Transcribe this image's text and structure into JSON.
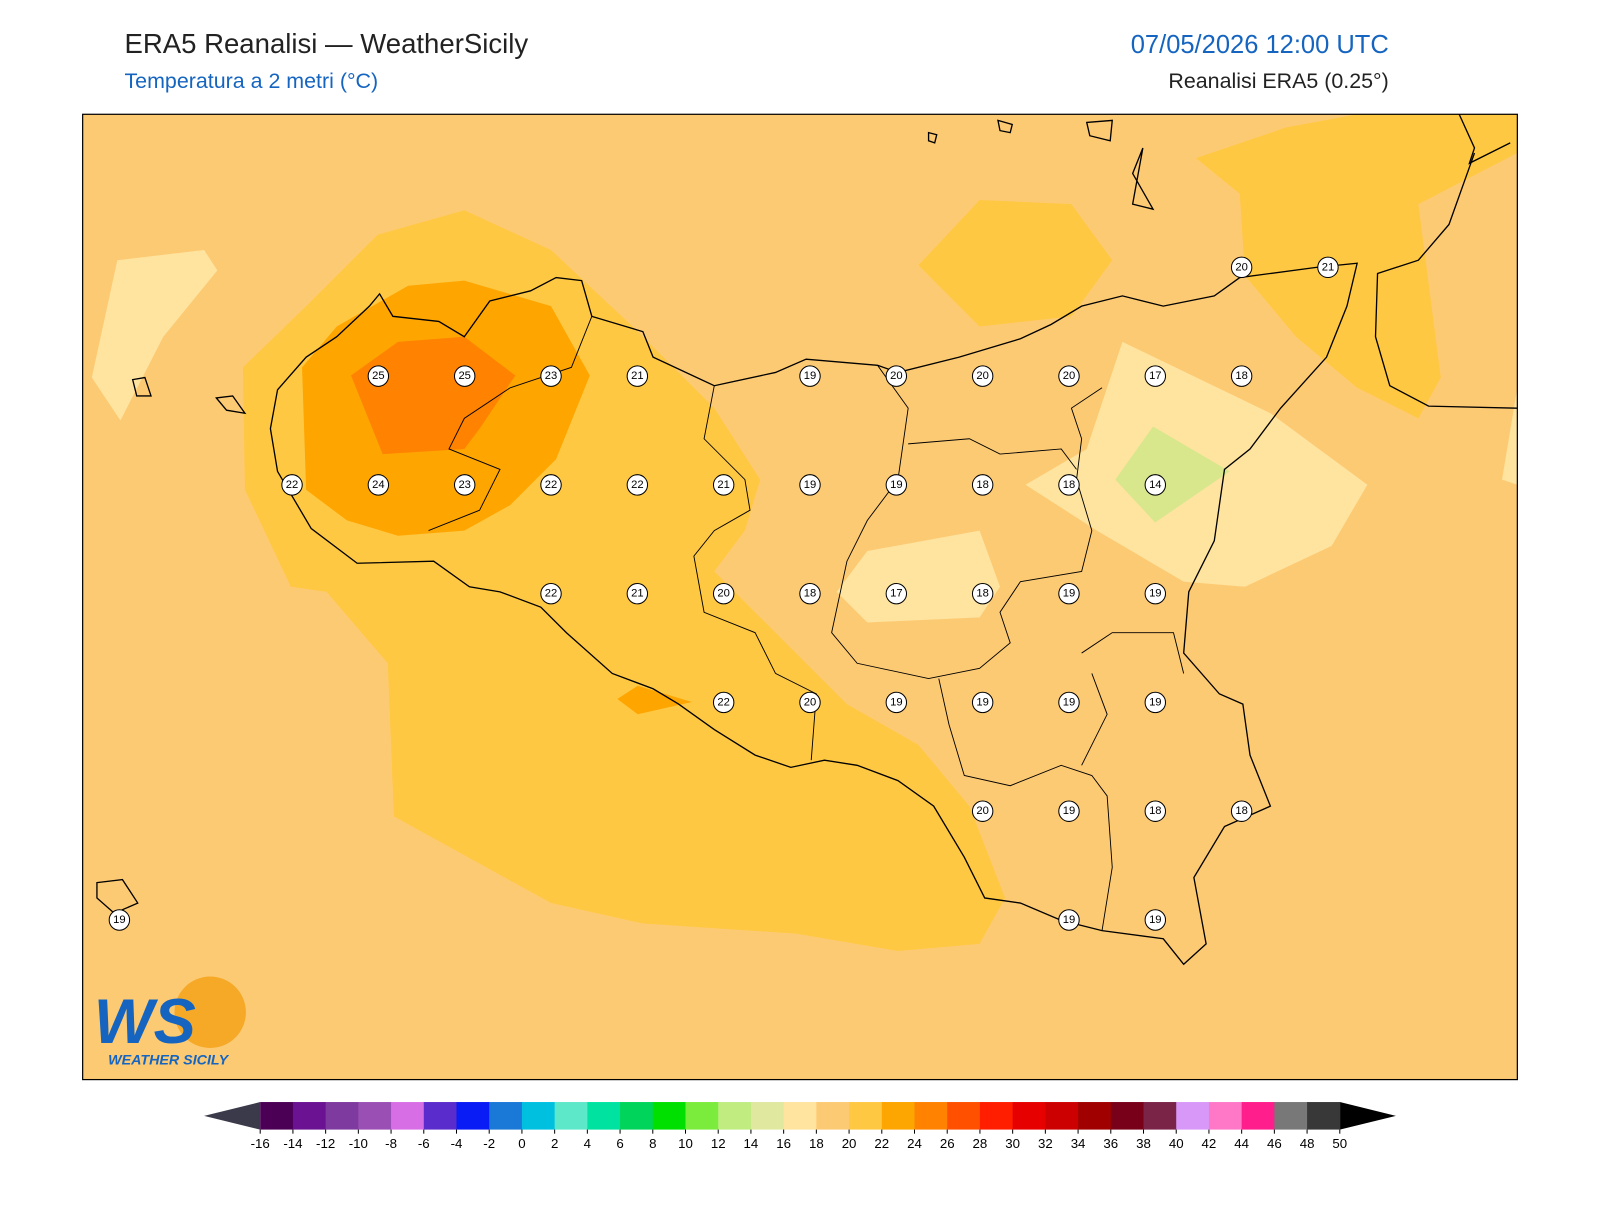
{
  "header": {
    "title": "ERA5 Reanalisi — WeatherSicily",
    "subtitle": "Temperatura a 2 metri (°C)",
    "datetime": "07/05/2026 12:00 UTC",
    "source": "Reanalisi ERA5 (0.25°)"
  },
  "stations": {
    "grid": [
      [
        null,
        null,
        null,
        null,
        null,
        null,
        null,
        null,
        null,
        null,
        null,
        null,
        null,
        20,
        21
      ],
      [
        null,
        null,
        null,
        25,
        25,
        23,
        21,
        null,
        19,
        20,
        20,
        20,
        17,
        18,
        null
      ],
      [
        null,
        null,
        22,
        24,
        23,
        22,
        22,
        21,
        19,
        19,
        18,
        18,
        14,
        null,
        null
      ],
      [
        null,
        null,
        null,
        null,
        null,
        22,
        21,
        20,
        18,
        17,
        18,
        19,
        19,
        null,
        null
      ],
      [
        null,
        null,
        null,
        null,
        null,
        null,
        null,
        22,
        20,
        19,
        19,
        19,
        19,
        null,
        null
      ],
      [
        null,
        null,
        null,
        null,
        null,
        null,
        null,
        null,
        null,
        null,
        20,
        19,
        18,
        18,
        null
      ],
      [
        19,
        null,
        null,
        null,
        null,
        null,
        null,
        null,
        null,
        null,
        null,
        19,
        19,
        null,
        null
      ]
    ]
  },
  "colorbar": {
    "ticks": [
      -16,
      -14,
      -12,
      -10,
      -8,
      -6,
      -4,
      -2,
      0,
      2,
      4,
      6,
      8,
      10,
      12,
      14,
      16,
      18,
      20,
      22,
      24,
      26,
      28,
      30,
      32,
      34,
      36,
      38,
      40,
      42,
      44,
      46,
      48,
      50
    ],
    "colors": [
      "#4b0055",
      "#6a1291",
      "#7e3a9e",
      "#9a4fb5",
      "#d86ee6",
      "#5a2ccb",
      "#0a1cf5",
      "#1a78d6",
      "#00c0e0",
      "#5de8c9",
      "#00e3a0",
      "#00d45a",
      "#00e000",
      "#7cec3c",
      "#c0ec80",
      "#e0e8a0",
      "#ffe4a0",
      "#fdca74",
      "#ffc843",
      "#fda500",
      "#ff8200",
      "#ff5000",
      "#ff1e00",
      "#e60000",
      "#cc0000",
      "#a00000",
      "#780018",
      "#7a2448",
      "#d898f8",
      "#ff78c8",
      "#ff1e8c",
      "#787878",
      "#383838"
    ],
    "under_color": "#3a3a4a",
    "over_color": "#000000"
  },
  "logo": {
    "mark": "WS",
    "name": "WEATHER SICILY"
  }
}
